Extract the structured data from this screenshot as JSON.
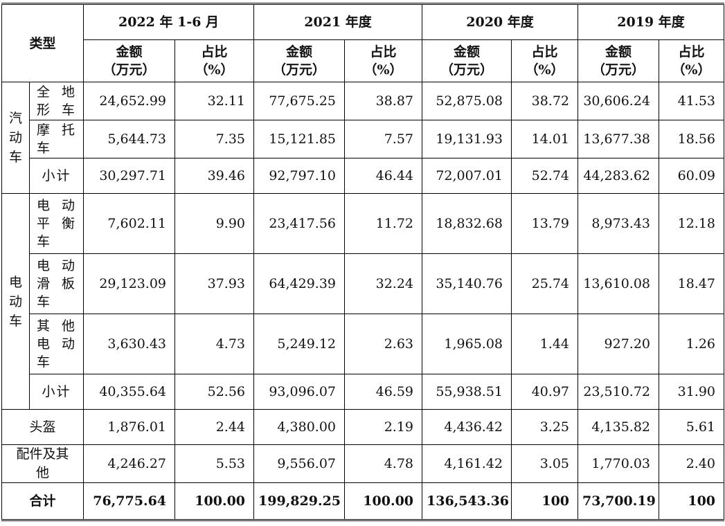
{
  "header": {
    "type_label": "类型",
    "periods": [
      "2022 年 1-6 月",
      "2021 年度",
      "2020 年度",
      "2019 年度"
    ],
    "amount_label": "金额\n（万元）",
    "share_label": "占比\n（%）"
  },
  "groups": {
    "fuel": "汽动车",
    "electric": "电动车"
  },
  "rows": [
    {
      "sub": "全地形车",
      "values": [
        "24,652.99",
        "32.11",
        "77,675.25",
        "38.87",
        "52,875.08",
        "38.72",
        "30,606.24",
        "41.53"
      ]
    },
    {
      "sub": "摩托车",
      "values": [
        "5,644.73",
        "7.35",
        "15,121.85",
        "7.57",
        "19,131.93",
        "14.01",
        "13,677.38",
        "18.56"
      ]
    },
    {
      "sub": "小计",
      "values": [
        "30,297.71",
        "39.46",
        "92,797.10",
        "46.44",
        "72,007.01",
        "52.74",
        "44,283.62",
        "60.09"
      ]
    },
    {
      "sub": "电动平衡车",
      "values": [
        "7,602.11",
        "9.90",
        "23,417.56",
        "11.72",
        "18,832.68",
        "13.79",
        "8,973.43",
        "12.18"
      ]
    },
    {
      "sub": "电动滑板车",
      "values": [
        "29,123.09",
        "37.93",
        "64,429.39",
        "32.24",
        "35,140.76",
        "25.74",
        "13,610.08",
        "18.47"
      ]
    },
    {
      "sub": "其他电动车",
      "values": [
        "3,630.43",
        "4.73",
        "5,249.12",
        "2.63",
        "1,965.08",
        "1.44",
        "927.20",
        "1.26"
      ]
    },
    {
      "sub": "小计",
      "values": [
        "40,355.64",
        "52.56",
        "93,096.07",
        "46.59",
        "55,938.51",
        "40.97",
        "23,510.72",
        "31.90"
      ]
    },
    {
      "sub": "头盔",
      "values": [
        "1,876.01",
        "2.44",
        "4,380.00",
        "2.19",
        "4,436.42",
        "3.25",
        "4,135.82",
        "5.61"
      ]
    },
    {
      "sub": "配件及其他",
      "values": [
        "4,246.27",
        "5.53",
        "9,556.07",
        "4.78",
        "4,161.42",
        "3.05",
        "1,770.03",
        "2.40"
      ]
    }
  ],
  "total": {
    "label": "合计",
    "values": [
      "76,775.64",
      "100.00",
      "199,829.25",
      "100.00",
      "136,543.36",
      "100",
      "73,700.19",
      "100"
    ]
  }
}
